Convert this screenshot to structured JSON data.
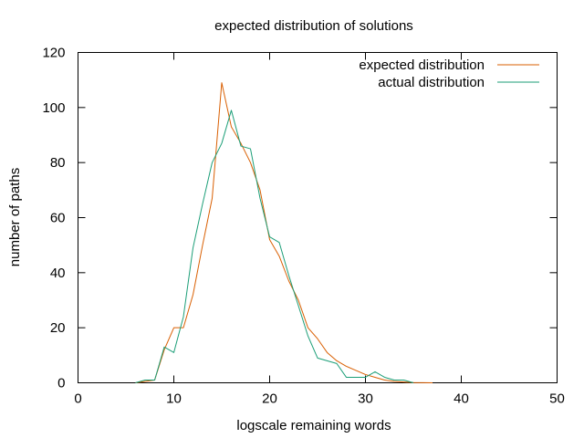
{
  "chart_data": {
    "type": "line",
    "title": "expected distribution of solutions",
    "xlabel": "logscale remaining words",
    "ylabel": "number of paths",
    "xlim": [
      0,
      50
    ],
    "ylim": [
      0,
      120
    ],
    "xticks": [
      0,
      10,
      20,
      30,
      40,
      50
    ],
    "yticks": [
      0,
      20,
      40,
      60,
      80,
      100,
      120
    ],
    "xtick_labels": [
      "0",
      "10",
      "20",
      "30",
      "40",
      "50"
    ],
    "ytick_labels": [
      "0",
      "20",
      "40",
      "60",
      "80",
      "100",
      "120"
    ],
    "grid": false,
    "legend_position": "top-right",
    "series": [
      {
        "name": "expected distribution",
        "color": "#d95f02",
        "x": [
          6,
          7,
          8,
          9,
          10,
          11,
          12,
          13,
          14,
          15,
          16,
          17,
          18,
          19,
          20,
          21,
          22,
          23,
          24,
          25,
          26,
          27,
          28,
          29,
          30,
          31,
          32,
          33,
          34,
          35,
          36,
          37
        ],
        "y": [
          0,
          0.5,
          1,
          12,
          20,
          20,
          32,
          50,
          67,
          109,
          93,
          87,
          80,
          70,
          52,
          46,
          37,
          30,
          20,
          16,
          11,
          8,
          6,
          4.5,
          3,
          2,
          1,
          0.5,
          0.3,
          0.1,
          0.05,
          0
        ]
      },
      {
        "name": "actual distribution",
        "color": "#1b9e77",
        "x": [
          6,
          7,
          8,
          9,
          10,
          11,
          12,
          13,
          14,
          15,
          16,
          17,
          18,
          19,
          20,
          21,
          22,
          23,
          24,
          25,
          26,
          27,
          28,
          29,
          30,
          31,
          32,
          33,
          34,
          35
        ],
        "y": [
          0,
          1,
          1,
          13,
          11,
          24,
          49,
          65,
          80,
          87,
          99,
          86,
          85,
          67,
          53,
          51,
          39,
          28,
          17,
          9,
          8,
          7,
          2,
          2,
          2,
          4,
          2,
          1,
          1,
          0
        ]
      }
    ]
  }
}
